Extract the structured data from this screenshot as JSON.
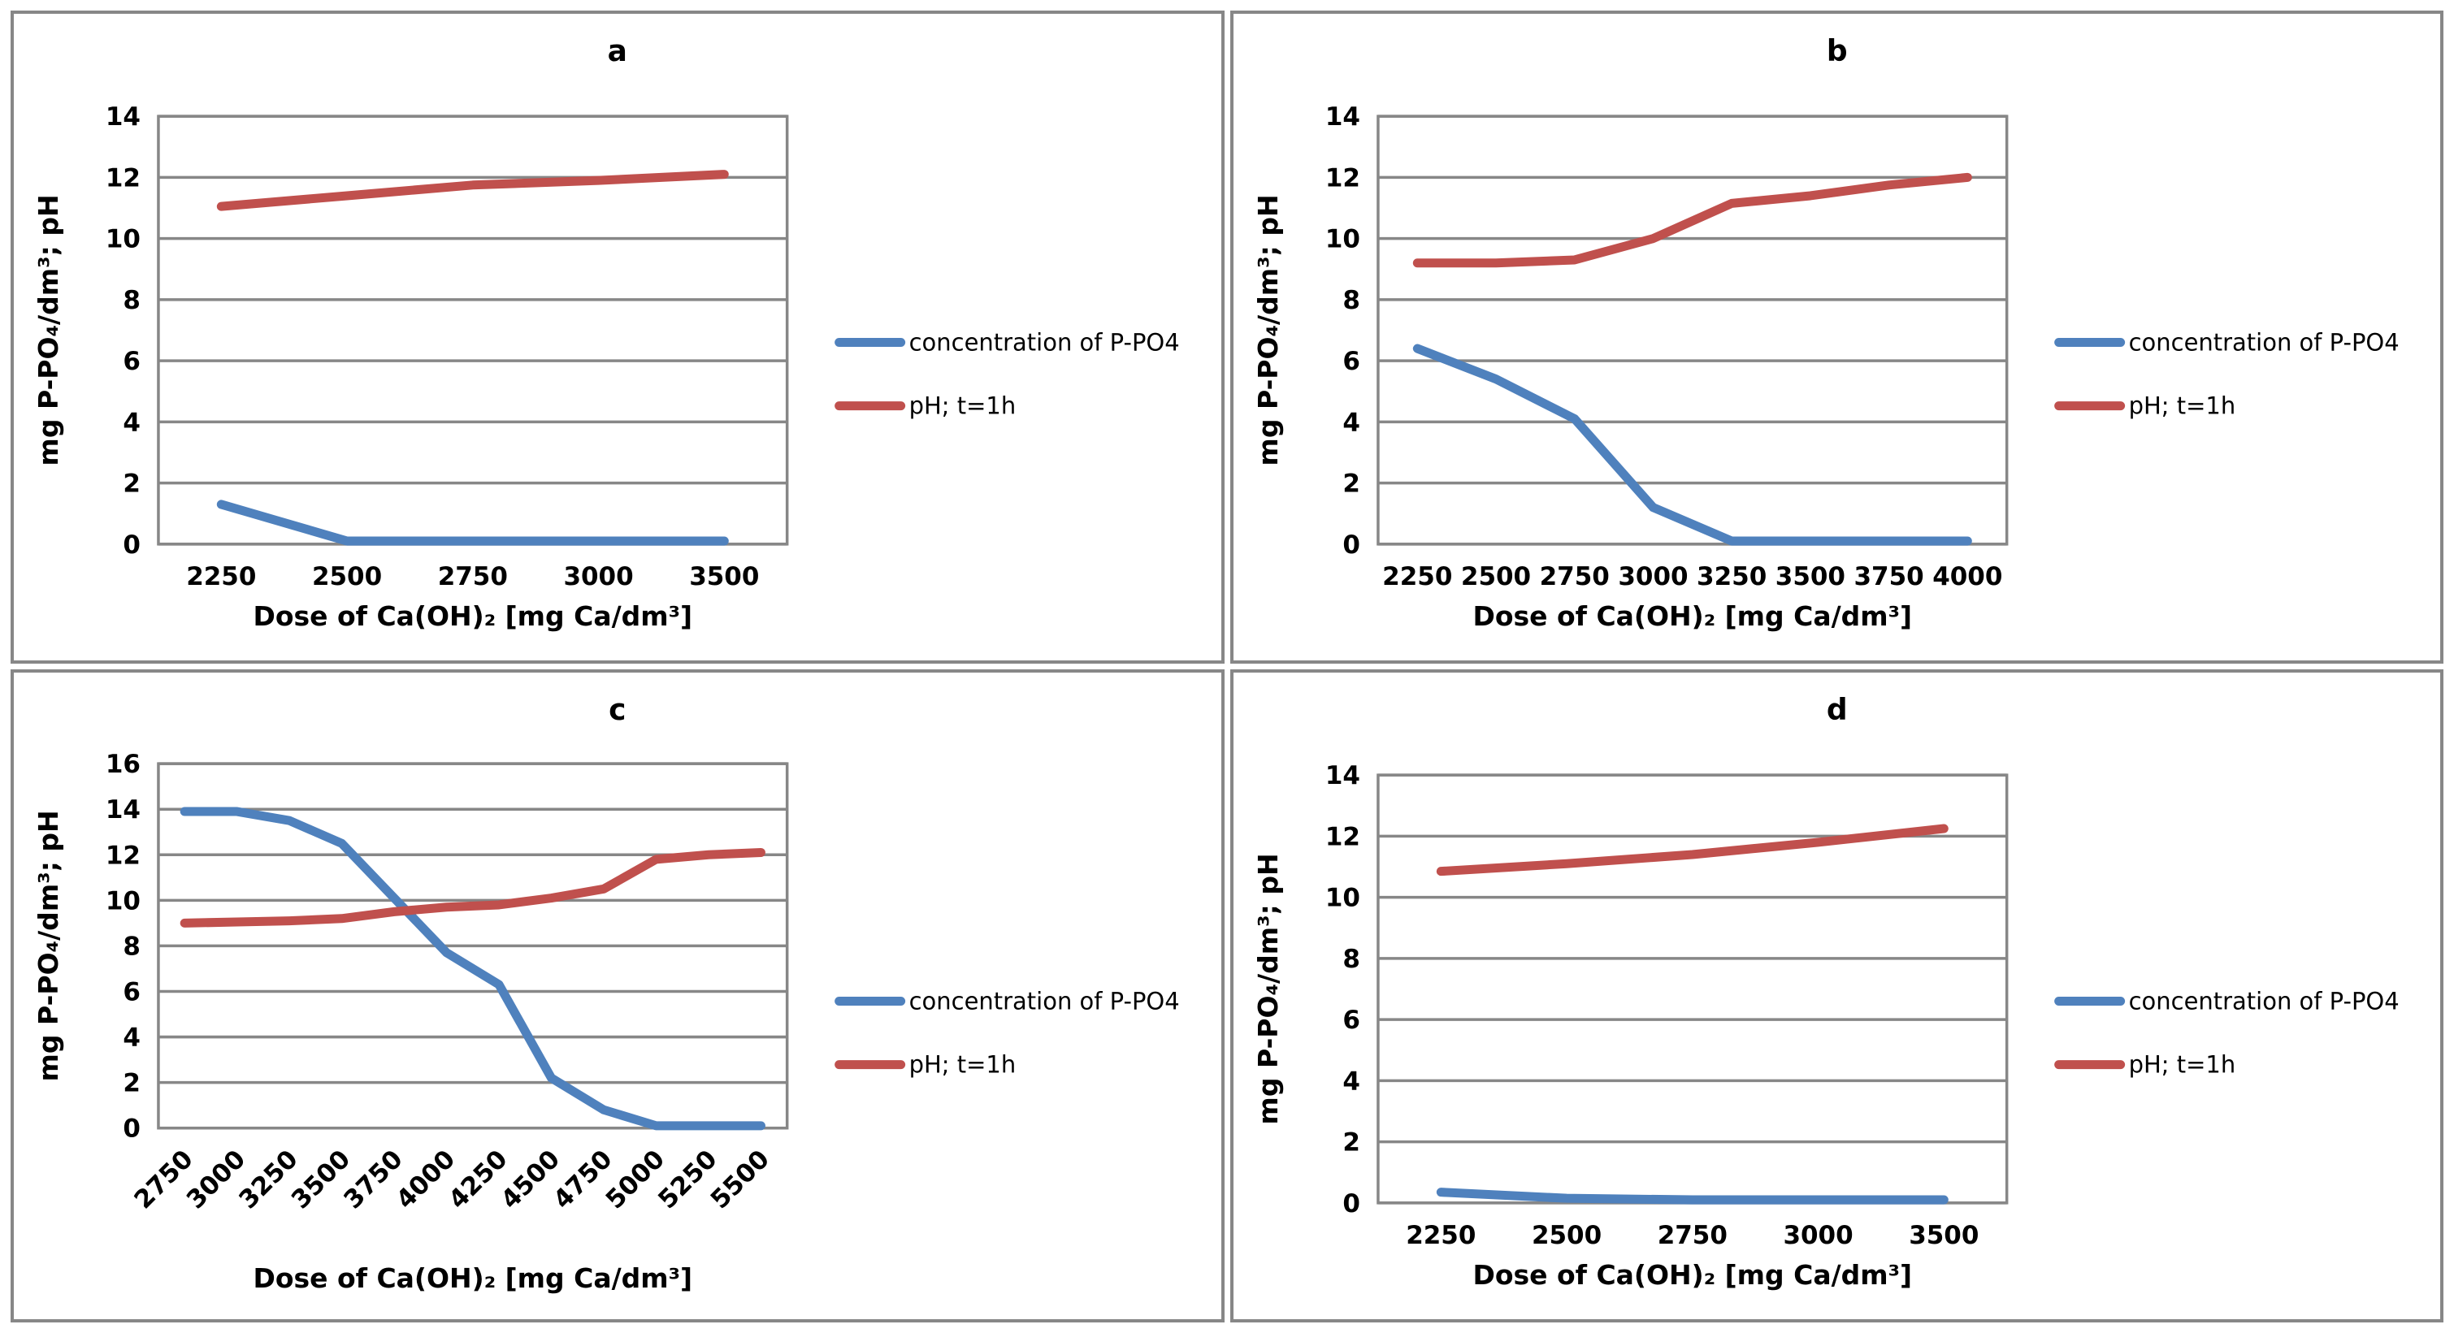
{
  "figure": {
    "background": "#FFFFFF",
    "panel_border_color": "#878787",
    "grid_color": "#878787",
    "text_color": "#000000",
    "series_colors": {
      "concentration": "#4F81BD",
      "ph": "#C0504D"
    }
  },
  "chart_data": [
    {
      "type": "line",
      "panel_label": "a",
      "title": "a",
      "xlabel": "Dose of Ca(OH)₂ [mg Ca/dm³]",
      "ylabel": "mg P-PO₄/dm³; pH",
      "categories": [
        "2250",
        "2500",
        "2750",
        "3000",
        "3500"
      ],
      "x_rotated": false,
      "ylim": [
        0,
        14
      ],
      "ytick_step": 2,
      "grid": true,
      "legend_position": "right",
      "series": [
        {
          "name": "concentration of P-PO4",
          "color": "#4F81BD",
          "values": [
            1.3,
            0.1,
            0.1,
            0.1,
            0.1
          ]
        },
        {
          "name": "pH; t=1h",
          "color": "#C0504D",
          "values": [
            11.05,
            11.4,
            11.75,
            11.9,
            12.1
          ]
        }
      ]
    },
    {
      "type": "line",
      "panel_label": "b",
      "title": "b",
      "xlabel": "Dose of Ca(OH)₂ [mg Ca/dm³]",
      "ylabel": "mg P-PO₄/dm³; pH",
      "categories": [
        "2250",
        "2500",
        "2750",
        "3000",
        "3250",
        "3500",
        "3750",
        "4000"
      ],
      "x_rotated": false,
      "ylim": [
        0,
        14
      ],
      "ytick_step": 2,
      "grid": true,
      "legend_position": "right",
      "series": [
        {
          "name": "concentration of P-PO4",
          "color": "#4F81BD",
          "values": [
            6.4,
            5.4,
            4.1,
            1.2,
            0.1,
            0.1,
            0.1,
            0.1
          ]
        },
        {
          "name": "pH; t=1h",
          "color": "#C0504D",
          "values": [
            9.2,
            9.2,
            9.3,
            10.0,
            11.15,
            11.4,
            11.75,
            12.0
          ]
        }
      ]
    },
    {
      "type": "line",
      "panel_label": "c",
      "title": "c",
      "xlabel": "Dose of Ca(OH)₂ [mg Ca/dm³]",
      "ylabel": "mg P-PO₄/dm³; pH",
      "categories": [
        "2750",
        "3000",
        "3250",
        "3500",
        "3750",
        "4000",
        "4250",
        "4500",
        "4750",
        "5000",
        "5250",
        "5500"
      ],
      "x_rotated": true,
      "ylim": [
        0,
        16
      ],
      "ytick_step": 2,
      "grid": true,
      "legend_position": "right",
      "series": [
        {
          "name": "concentration of P-PO4",
          "color": "#4F81BD",
          "values": [
            13.9,
            13.9,
            13.5,
            12.5,
            10.1,
            7.7,
            6.3,
            2.2,
            0.8,
            0.1,
            0.1,
            0.1
          ]
        },
        {
          "name": "pH; t=1h",
          "color": "#C0504D",
          "values": [
            9.0,
            9.05,
            9.1,
            9.2,
            9.5,
            9.7,
            9.8,
            10.1,
            10.5,
            11.8,
            12.0,
            12.1
          ]
        }
      ]
    },
    {
      "type": "line",
      "panel_label": "d",
      "title": "d",
      "xlabel": "Dose of Ca(OH)₂ [mg Ca/dm³]",
      "ylabel": "mg P-PO₄/dm³; pH",
      "categories": [
        "2250",
        "2500",
        "2750",
        "3000",
        "3500"
      ],
      "x_rotated": false,
      "ylim": [
        0,
        14
      ],
      "ytick_step": 2,
      "grid": true,
      "legend_position": "right",
      "series": [
        {
          "name": "concentration of P-PO4",
          "color": "#4F81BD",
          "values": [
            0.35,
            0.15,
            0.1,
            0.1,
            0.1
          ]
        },
        {
          "name": "pH; t=1h",
          "color": "#C0504D",
          "values": [
            10.85,
            11.1,
            11.4,
            11.8,
            12.25
          ]
        }
      ]
    }
  ]
}
